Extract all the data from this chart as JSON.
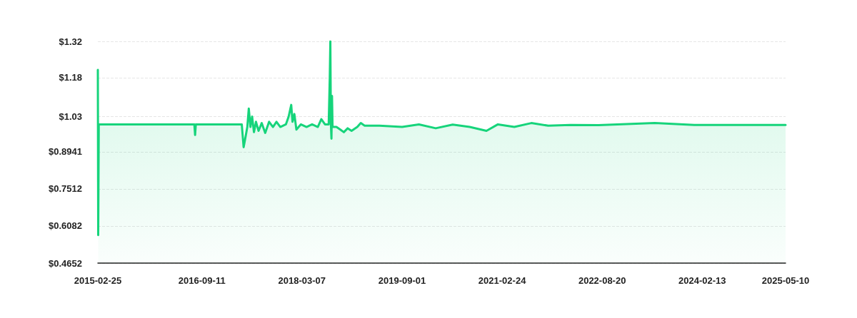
{
  "chart_data": {
    "type": "area",
    "color": "#16d47b",
    "grid": "y",
    "marker": "none",
    "line_style": "solid",
    "xlim": [
      "2015-02-25",
      "2025-05-10"
    ],
    "xticks": [
      "2015-02-25",
      "2016-09-11",
      "2018-03-07",
      "2019-09-01",
      "2021-02-24",
      "2022-08-20",
      "2024-02-13",
      "2025-05-10"
    ],
    "ylim": [
      0.4652,
      1.32
    ],
    "yticks": [
      {
        "value": 0.4652,
        "label": "$0.4652"
      },
      {
        "value": 0.6082,
        "label": "$0.6082"
      },
      {
        "value": 0.7512,
        "label": "$0.7512"
      },
      {
        "value": 0.8941,
        "label": "$0.8941"
      },
      {
        "value": 1.03,
        "label": "$1.03"
      },
      {
        "value": 1.18,
        "label": "$1.18"
      },
      {
        "value": 1.32,
        "label": "$1.32"
      }
    ],
    "x": [
      "2015-02-25",
      "2015-02-27",
      "2015-03-02",
      "2016-08-01",
      "2016-08-05",
      "2016-08-09",
      "2017-04-15",
      "2017-04-25",
      "2017-05-05",
      "2017-05-15",
      "2017-05-23",
      "2017-06-01",
      "2017-06-10",
      "2017-06-20",
      "2017-07-01",
      "2017-07-15",
      "2017-08-01",
      "2017-08-20",
      "2017-09-10",
      "2017-10-01",
      "2017-10-20",
      "2017-11-10",
      "2017-12-10",
      "2017-12-25",
      "2018-01-08",
      "2018-01-15",
      "2018-01-25",
      "2018-02-05",
      "2018-03-01",
      "2018-04-01",
      "2018-05-01",
      "2018-06-01",
      "2018-06-20",
      "2018-07-10",
      "2018-07-30",
      "2018-08-05",
      "2018-08-08",
      "2018-08-11",
      "2018-08-14",
      "2018-08-17",
      "2018-08-20",
      "2018-09-10",
      "2018-10-01",
      "2018-10-20",
      "2018-11-10",
      "2018-12-01",
      "2019-01-01",
      "2019-01-20",
      "2019-02-10",
      "2019-05-01",
      "2019-09-01",
      "2019-12-01",
      "2020-03-01",
      "2020-06-01",
      "2020-09-01",
      "2020-12-01",
      "2021-02-01",
      "2021-05-01",
      "2021-08-01",
      "2021-11-01",
      "2022-03-01",
      "2022-08-01",
      "2023-06-01",
      "2024-01-01",
      "2025-05-10"
    ],
    "values": [
      1.21,
      0.573,
      1.0,
      1.0,
      0.959,
      1.0,
      1.0,
      0.912,
      0.95,
      0.99,
      1.061,
      0.99,
      1.03,
      0.97,
      1.01,
      0.975,
      1.005,
      0.967,
      1.01,
      0.99,
      1.01,
      0.99,
      1.0,
      1.03,
      1.075,
      1.01,
      1.04,
      0.98,
      1.0,
      0.99,
      1.0,
      0.99,
      1.02,
      1.0,
      1.0,
      1.185,
      1.32,
      1.0,
      0.945,
      1.11,
      0.99,
      0.99,
      0.98,
      0.97,
      0.985,
      0.975,
      0.99,
      1.005,
      0.995,
      0.995,
      0.99,
      1.0,
      0.985,
      0.999,
      0.99,
      0.975,
      1.0,
      0.99,
      1.005,
      0.995,
      0.998,
      0.997,
      1.005,
      0.998,
      0.998
    ]
  }
}
